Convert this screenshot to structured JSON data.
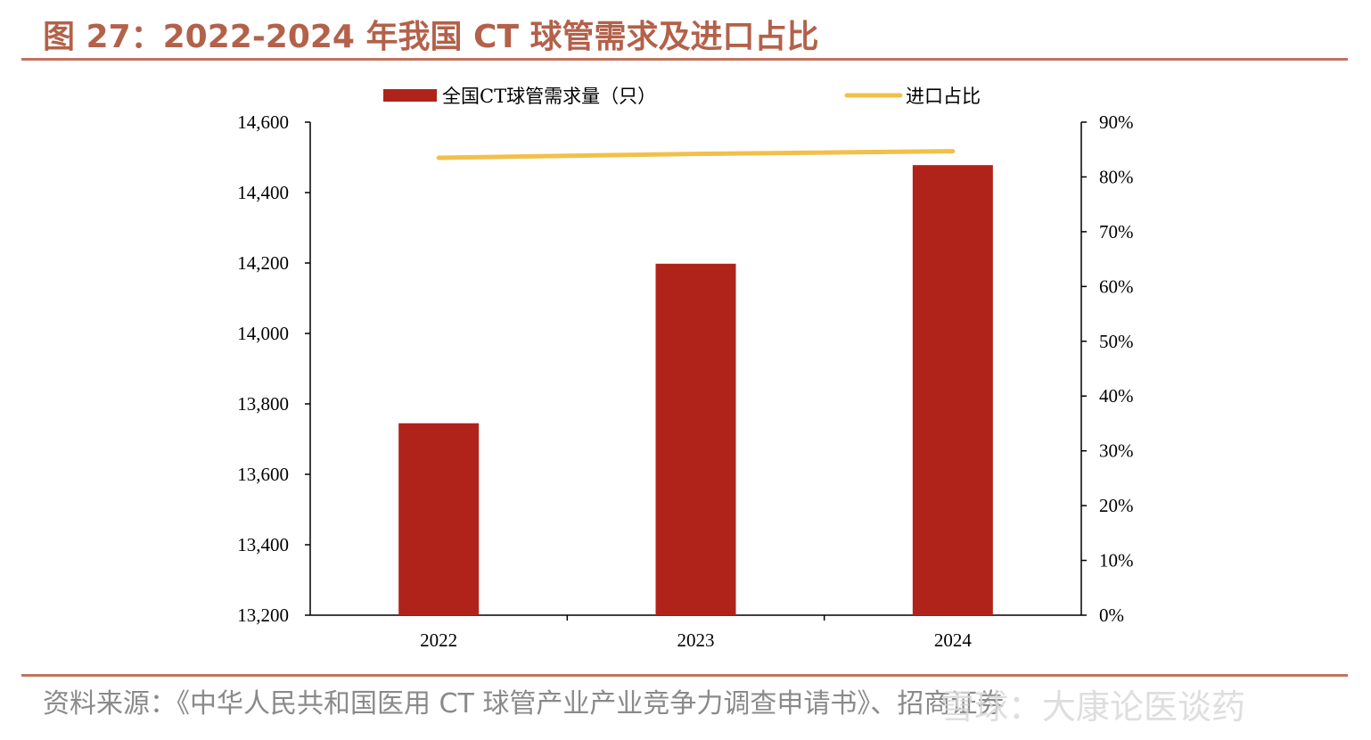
{
  "header": {
    "title": "图 27：2022-2024 年我国 CT 球管需求及进口占比"
  },
  "footer": {
    "source": "资料来源：《中华人民共和国医用 CT 球管产业产业竞争力调查申请书》、招商证券",
    "watermark": "雪球：大康论医谈药"
  },
  "colors": {
    "bar": "#b0231b",
    "line": "#f2c04a",
    "accent": "#c0745f"
  },
  "chart_data": {
    "type": "bar",
    "categories": [
      "2022",
      "2023",
      "2024"
    ],
    "series": [
      {
        "name": "全国CT球管需求量（只）",
        "type": "bar",
        "axis": "left",
        "values": [
          13745,
          14198,
          14478
        ]
      },
      {
        "name": "进口占比",
        "type": "line",
        "axis": "right",
        "values": [
          83.5,
          84.2,
          84.7
        ]
      }
    ],
    "y_left": {
      "lim": [
        13200,
        14600
      ],
      "ticks": [
        13200,
        13400,
        13600,
        13800,
        14000,
        14200,
        14400,
        14600
      ],
      "tick_labels": [
        "13,200",
        "13,400",
        "13,600",
        "13,800",
        "14,000",
        "14,200",
        "14,400",
        "14,600"
      ]
    },
    "y_right": {
      "lim": [
        0,
        90
      ],
      "ticks": [
        0,
        10,
        20,
        30,
        40,
        50,
        60,
        70,
        80,
        90
      ],
      "tick_labels": [
        "0%",
        "10%",
        "20%",
        "30%",
        "40%",
        "50%",
        "60%",
        "70%",
        "80%",
        "90%"
      ]
    },
    "grid": false,
    "legend_position": "top"
  }
}
